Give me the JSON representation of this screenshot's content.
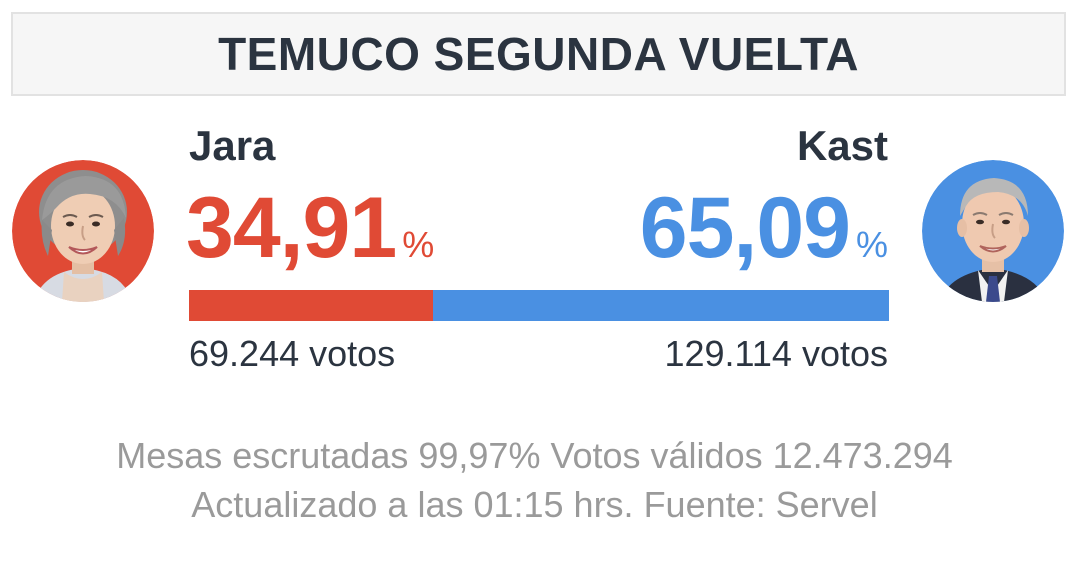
{
  "title": "TEMUCO SEGUNDA VUELTA",
  "colors": {
    "left_candidate": "#e04a35",
    "right_candidate": "#4a90e2",
    "text_dark": "#2b3440",
    "text_muted": "#9a9a9a"
  },
  "candidates": [
    {
      "name": "Jara",
      "percent": "34,91",
      "percent_sign": "%",
      "vote_share": 34.91,
      "votes": "69.244 votos",
      "photo": "candidate-photo-jara"
    },
    {
      "name": "Kast",
      "percent": "65,09",
      "percent_sign": "%",
      "vote_share": 65.09,
      "votes": "129.114 votos",
      "photo": "candidate-photo-kast"
    }
  ],
  "footer": {
    "line1": "Mesas escrutadas 99,97% Votos válidos 12.473.294",
    "line2": "Actualizado a las 01:15 hrs. Fuente: Servel"
  }
}
